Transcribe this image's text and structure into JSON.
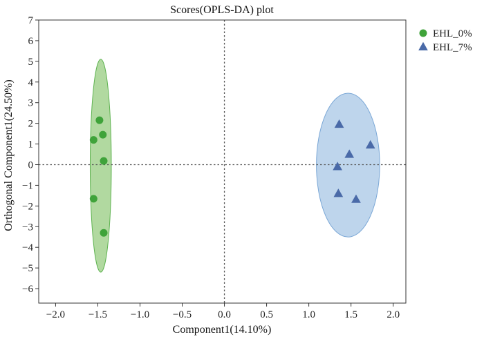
{
  "chart_data": {
    "type": "scatter",
    "title": "Scores(OPLS-DA) plot",
    "xlabel": "Component1(14.10%)",
    "ylabel": "Orthogonal Component1(24.50%)",
    "xlim": [
      -2.2,
      2.15
    ],
    "ylim": [
      -6.7,
      7.0
    ],
    "xticks": [
      -2.0,
      -1.5,
      -1.0,
      -0.5,
      0.0,
      0.5,
      1.0,
      1.5,
      2.0
    ],
    "xtick_labels": [
      "−2.0",
      "−1.5",
      "−1.0",
      "−0.5",
      "0.0",
      "0.5",
      "1.0",
      "1.5",
      "2.0"
    ],
    "yticks": [
      -6,
      -5,
      -4,
      -3,
      -2,
      -1,
      0,
      1,
      2,
      3,
      4,
      5,
      6,
      7
    ],
    "ytick_labels": [
      "−6",
      "−5",
      "−4",
      "−3",
      "−2",
      "−1",
      "0",
      "1",
      "2",
      "3",
      "4",
      "5",
      "6",
      "7"
    ],
    "reference_lines": {
      "x": 0,
      "y": 0
    },
    "legend_position": "top-right",
    "series": [
      {
        "name": "EHL_0%",
        "marker": "circle",
        "color": "#3fa33a",
        "ellipse_fill": "#a8d596",
        "ellipse_stroke": "#5eb350",
        "ellipse": {
          "cx": -1.465,
          "cy": -0.05,
          "rx": 0.125,
          "ry": 5.15
        },
        "points": [
          {
            "x": -1.48,
            "y": 2.15
          },
          {
            "x": -1.44,
            "y": 1.45
          },
          {
            "x": -1.55,
            "y": 1.2
          },
          {
            "x": -1.43,
            "y": 0.18
          },
          {
            "x": -1.55,
            "y": -1.65
          },
          {
            "x": -1.43,
            "y": -3.3
          }
        ]
      },
      {
        "name": "EHL_7%",
        "marker": "triangle",
        "color": "#4a6aa8",
        "ellipse_fill": "#b7d0ea",
        "ellipse_stroke": "#7aa7d6",
        "ellipse": {
          "cx": 1.465,
          "cy": -0.02,
          "rx": 0.375,
          "ry": 3.48
        },
        "points": [
          {
            "x": 1.36,
            "y": 1.95
          },
          {
            "x": 1.48,
            "y": 0.5
          },
          {
            "x": 1.73,
            "y": 0.95
          },
          {
            "x": 1.34,
            "y": -0.1
          },
          {
            "x": 1.35,
            "y": -1.4
          },
          {
            "x": 1.56,
            "y": -1.68
          }
        ]
      }
    ]
  }
}
